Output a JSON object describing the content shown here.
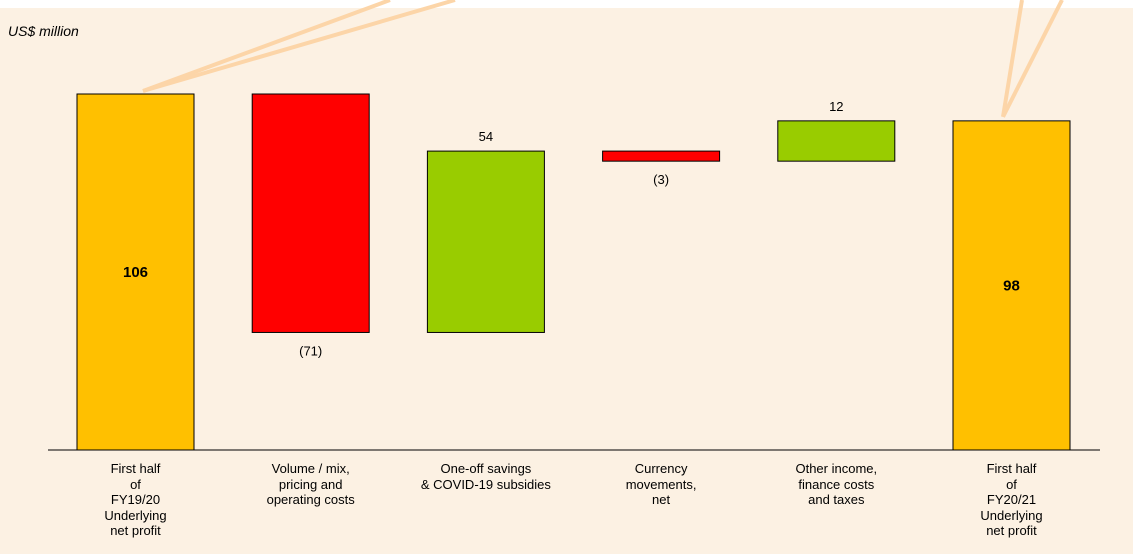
{
  "unit_label": "US$ million",
  "colors": {
    "background": "#fcf1e3",
    "total": "#ffc000",
    "decrease": "#ff0000",
    "increase": "#99cc00",
    "callout": "#fcd5a8"
  },
  "chart_data": {
    "type": "bar",
    "subtype": "waterfall",
    "ylabel": "US$ million",
    "ylim": [
      0,
      111
    ],
    "grid": false,
    "legend": "none",
    "categories": [
      "First half\nof\nFY19/20\nUnderlying\nnet profit",
      "Volume / mix,\npricing and\noperating costs",
      "One-off savings\n& COVID-19 subsidies",
      "Currency\nmovements,\nnet",
      "Other income,\nfinance costs\nand taxes",
      "First half\nof\nFY20/21\nUnderlying\nnet profit"
    ],
    "values": [
      106,
      -71,
      54,
      -3,
      12,
      98
    ],
    "value_labels": [
      "106",
      "(71)",
      "54",
      "(3)",
      "12",
      "98"
    ],
    "bar_kinds": [
      "total",
      "decrease",
      "increase",
      "decrease",
      "increase",
      "total"
    ]
  }
}
